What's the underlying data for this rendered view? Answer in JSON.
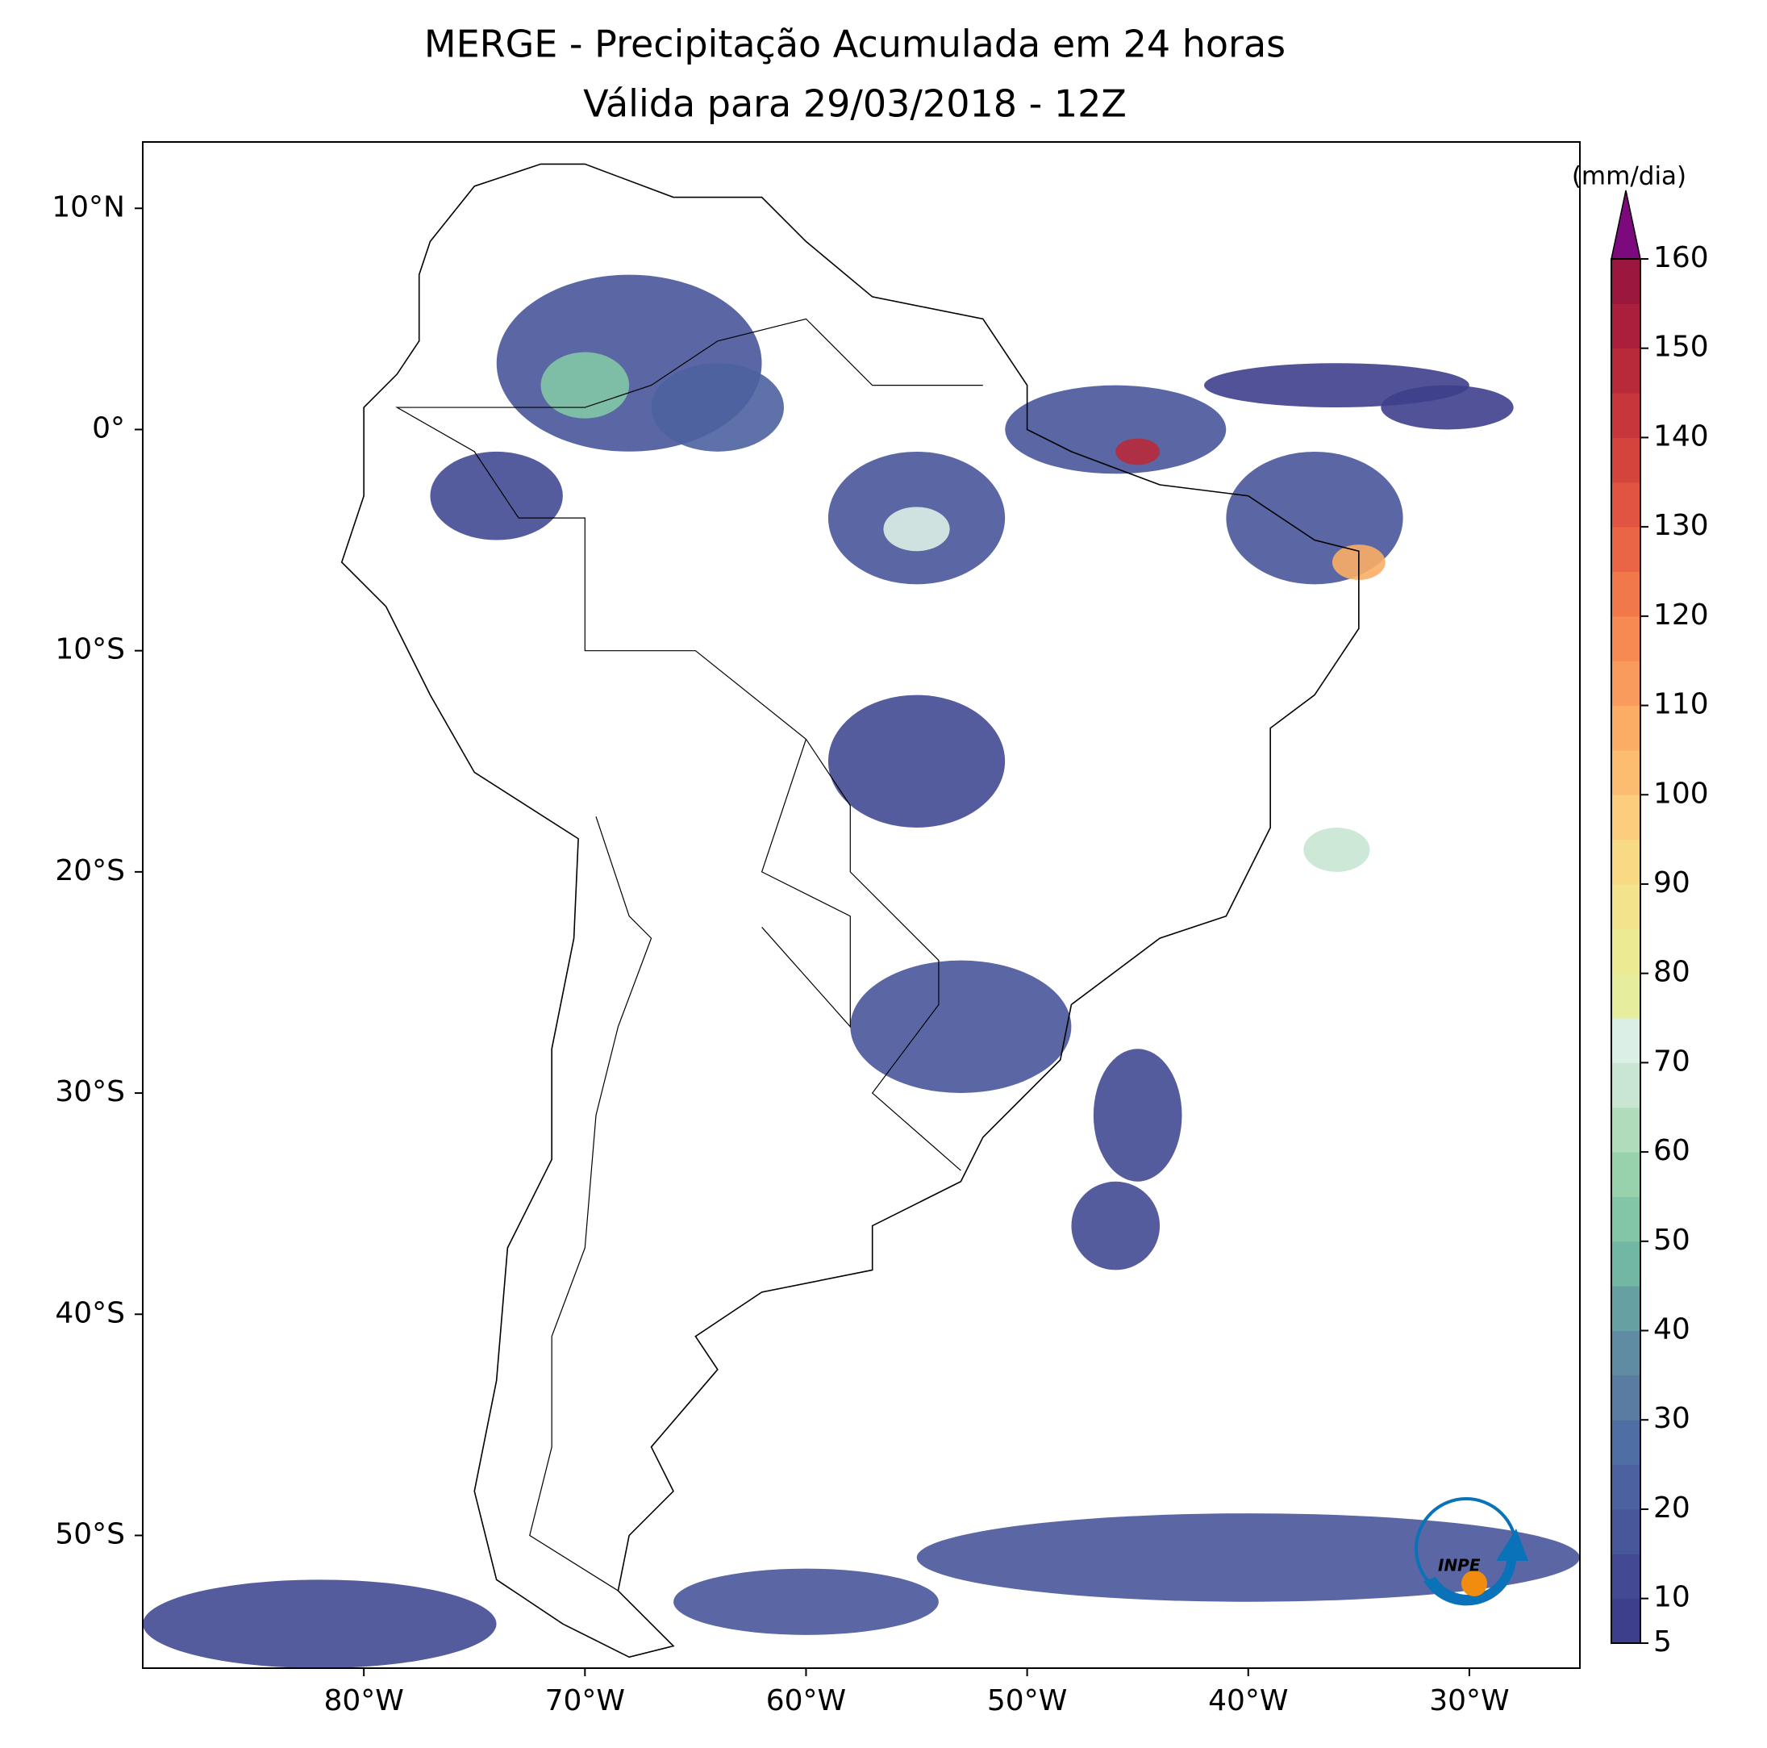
{
  "chart_data": {
    "type": "map",
    "title": "MERGE - Precipitação Acumulada em 24 horas",
    "subtitle": "Válida para 29/03/2018 - 12Z",
    "xlim": [
      -90,
      -25
    ],
    "ylim": [
      -56,
      13
    ],
    "xticks": [
      {
        "value": -80,
        "label": "80°W"
      },
      {
        "value": -70,
        "label": "70°W"
      },
      {
        "value": -60,
        "label": "60°W"
      },
      {
        "value": -50,
        "label": "50°W"
      },
      {
        "value": -40,
        "label": "40°W"
      },
      {
        "value": -30,
        "label": "30°W"
      }
    ],
    "yticks": [
      {
        "value": 10,
        "label": "10°N"
      },
      {
        "value": 0,
        "label": "0°"
      },
      {
        "value": -10,
        "label": "10°S"
      },
      {
        "value": -20,
        "label": "20°S"
      },
      {
        "value": -30,
        "label": "30°S"
      },
      {
        "value": -40,
        "label": "40°S"
      },
      {
        "value": -50,
        "label": "50°S"
      }
    ],
    "colorbar": {
      "label": "(mm/dia)",
      "lim": [
        5,
        160
      ],
      "ticks": [
        5,
        10,
        20,
        30,
        40,
        50,
        60,
        70,
        80,
        90,
        100,
        110,
        120,
        130,
        140,
        150,
        160
      ],
      "colors": [
        "#3e3f8c",
        "#434a93",
        "#48569a",
        "#4c62a0",
        "#4f6fa4",
        "#5a7ca3",
        "#5f8ca2",
        "#66a0a3",
        "#72b6a4",
        "#82c6a6",
        "#98d2ad",
        "#b0dcbc",
        "#c8e6d2",
        "#dcefe6",
        "#e6ee9e",
        "#ecea92",
        "#f2e38c",
        "#f8d984",
        "#fbcd7c",
        "#fcbd70",
        "#fbad66",
        "#f99b5c",
        "#f68a52",
        "#f1784b",
        "#ea6545",
        "#e05441",
        "#d4443d",
        "#c6363a",
        "#b82a3a",
        "#aa1f3c",
        "#9c173d"
      ],
      "extend_color": "#7d0a7d"
    },
    "logo_text": "INPE"
  }
}
